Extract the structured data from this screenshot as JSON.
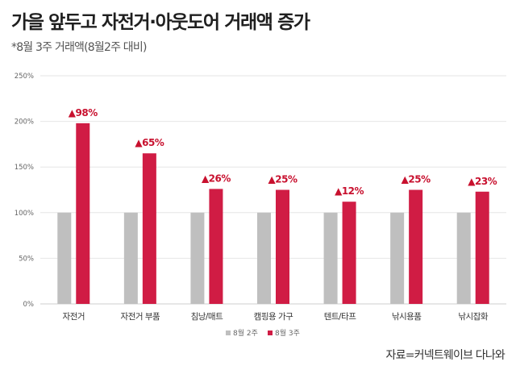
{
  "title": "가을 앞두고 자전거·아웃도어 거래액 증가",
  "subtitle": "*8월 3주 거래액(8월2주 대비)",
  "source": "자료=커넥트웨이브 다나와",
  "colors": {
    "base": "#bfbfbf",
    "current": "#d01c44",
    "label": "#c8102e"
  },
  "chart_data": {
    "type": "bar",
    "categories": [
      "자전거",
      "자전거 부품",
      "침낭/매트",
      "캠핑용 가구",
      "텐트/타프",
      "낚시용품",
      "낚시잡화"
    ],
    "series": [
      {
        "name": "8월 2주",
        "values": [
          100,
          100,
          100,
          100,
          100,
          100,
          100
        ]
      },
      {
        "name": "8월 3주",
        "values": [
          198,
          165,
          126,
          125,
          112,
          125,
          123
        ]
      }
    ],
    "data_labels": [
      "▲98%",
      "▲65%",
      "▲26%",
      "▲25%",
      "▲12%",
      "▲25%",
      "▲23%"
    ],
    "y_ticks": [
      "0%",
      "50%",
      "100%",
      "150%",
      "200%",
      "250%"
    ],
    "ylim": [
      0,
      250
    ],
    "grid": true,
    "legend": "bottom"
  }
}
